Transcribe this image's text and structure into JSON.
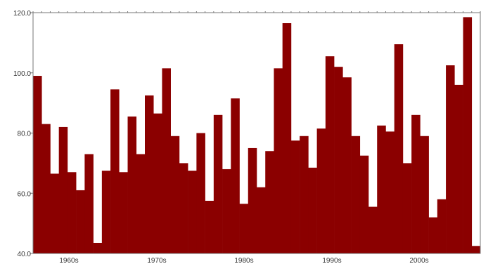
{
  "chart_data": {
    "type": "bar",
    "title": "",
    "xlabel": "",
    "ylabel": "",
    "ylim": [
      40,
      120
    ],
    "yticks": [
      "40.0",
      "60.0",
      "80.0",
      "100.0",
      "120.0"
    ],
    "xticks": [
      "1960s",
      "1970s",
      "1980s",
      "1990s",
      "2000s"
    ],
    "bar_color": "#8b0000",
    "grid": false,
    "legend": "none",
    "values": [
      99,
      83,
      66.5,
      82,
      67,
      61,
      73,
      43.5,
      67.5,
      94.5,
      67,
      85.5,
      73,
      92.5,
      86.5,
      101.5,
      79,
      70,
      67.5,
      80,
      57.5,
      86,
      68,
      91.5,
      56.5,
      75,
      62,
      74,
      101.5,
      116.5,
      77.5,
      79,
      68.5,
      81.5,
      105.5,
      102,
      98.5,
      79,
      72.5,
      55.5,
      82.5,
      80.5,
      109.5,
      70,
      86,
      79,
      52,
      58,
      102.5,
      96,
      118.5,
      42.5
    ]
  }
}
